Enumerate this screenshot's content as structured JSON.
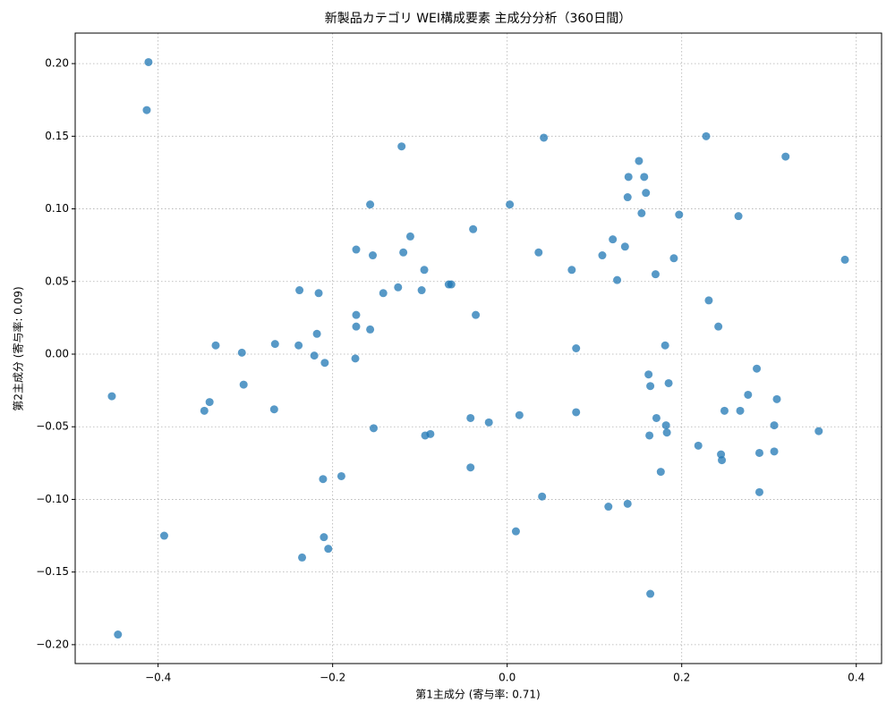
{
  "chart_data": {
    "type": "scatter",
    "title": "新製品カテゴリ WEI構成要素 主成分分析（360日間）",
    "xlabel": "第1主成分 (寄与率: 0.71)",
    "ylabel": "第2主成分 (寄与率: 0.09)",
    "color": "#1f77b4",
    "grid": true,
    "xlim": [
      -0.495,
      0.429
    ],
    "ylim": [
      -0.213,
      0.221
    ],
    "xticks": [
      {
        "value": -0.4,
        "label": "−0.4"
      },
      {
        "value": -0.2,
        "label": "−0.2"
      },
      {
        "value": 0.0,
        "label": "0.0"
      },
      {
        "value": 0.2,
        "label": "0.2"
      },
      {
        "value": 0.4,
        "label": "0.4"
      }
    ],
    "yticks": [
      {
        "value": -0.2,
        "label": "−0.20"
      },
      {
        "value": -0.15,
        "label": "−0.15"
      },
      {
        "value": -0.1,
        "label": "−0.10"
      },
      {
        "value": -0.05,
        "label": "−0.05"
      },
      {
        "value": 0.0,
        "label": "0.00"
      },
      {
        "value": 0.05,
        "label": "0.05"
      },
      {
        "value": 0.1,
        "label": "0.10"
      },
      {
        "value": 0.15,
        "label": "0.15"
      },
      {
        "value": 0.2,
        "label": "0.20"
      }
    ],
    "x": [
      -0.411,
      -0.413,
      -0.121,
      0.042,
      0.228,
      0.319,
      0.151,
      0.139,
      0.157,
      0.159,
      0.138,
      -0.157,
      0.003,
      0.154,
      0.197,
      0.265,
      -0.039,
      -0.111,
      0.121,
      0.135,
      -0.173,
      -0.119,
      -0.154,
      0.036,
      0.109,
      0.191,
      0.387,
      0.074,
      -0.095,
      0.17,
      0.126,
      -0.064,
      -0.067,
      -0.125,
      -0.238,
      -0.142,
      -0.216,
      -0.098,
      0.231,
      -0.036,
      -0.173,
      -0.173,
      -0.157,
      0.242,
      -0.218,
      -0.266,
      -0.334,
      -0.239,
      0.079,
      0.181,
      -0.304,
      -0.221,
      -0.174,
      -0.209,
      0.286,
      0.162,
      -0.453,
      -0.302,
      0.164,
      0.185,
      0.276,
      0.309,
      -0.341,
      -0.347,
      -0.267,
      0.249,
      0.267,
      0.079,
      -0.042,
      0.014,
      0.171,
      -0.021,
      0.306,
      0.182,
      -0.153,
      0.183,
      0.357,
      -0.088,
      -0.094,
      0.163,
      0.219,
      0.245,
      0.289,
      0.306,
      0.246,
      -0.042,
      0.176,
      -0.19,
      -0.211,
      0.289,
      0.04,
      0.138,
      0.116,
      0.01,
      -0.393,
      -0.21,
      -0.205,
      -0.235,
      0.164,
      -0.446
    ],
    "values": [
      0.201,
      0.168,
      0.143,
      0.149,
      0.15,
      0.136,
      0.133,
      0.122,
      0.122,
      0.111,
      0.108,
      0.103,
      0.103,
      0.097,
      0.096,
      0.095,
      0.086,
      0.081,
      0.079,
      0.074,
      0.072,
      0.07,
      0.068,
      0.07,
      0.068,
      0.066,
      0.065,
      0.058,
      0.058,
      0.055,
      0.051,
      0.048,
      0.048,
      0.046,
      0.044,
      0.042,
      0.042,
      0.044,
      0.037,
      0.027,
      0.027,
      0.019,
      0.017,
      0.019,
      0.014,
      0.007,
      0.006,
      0.006,
      0.004,
      0.006,
      0.001,
      -0.001,
      -0.003,
      -0.006,
      -0.01,
      -0.014,
      -0.029,
      -0.021,
      -0.022,
      -0.02,
      -0.028,
      -0.031,
      -0.033,
      -0.039,
      -0.038,
      -0.039,
      -0.039,
      -0.04,
      -0.044,
      -0.042,
      -0.044,
      -0.047,
      -0.049,
      -0.049,
      -0.051,
      -0.054,
      -0.053,
      -0.055,
      -0.056,
      -0.056,
      -0.063,
      -0.069,
      -0.068,
      -0.067,
      -0.073,
      -0.078,
      -0.081,
      -0.084,
      -0.086,
      -0.095,
      -0.098,
      -0.103,
      -0.105,
      -0.122,
      -0.125,
      -0.126,
      -0.134,
      -0.14,
      -0.165,
      -0.193
    ]
  }
}
